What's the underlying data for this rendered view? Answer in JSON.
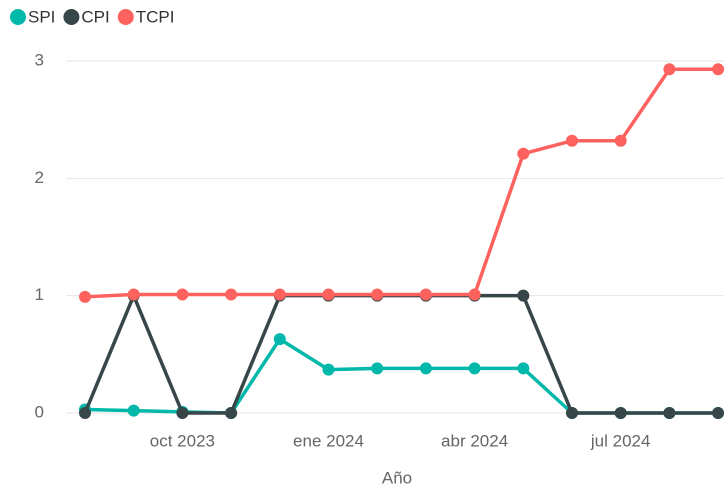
{
  "chart_data": {
    "type": "line",
    "x_label": "Año",
    "categories": [
      null,
      null,
      "oct 2023",
      null,
      null,
      "ene 2024",
      null,
      null,
      "abr 2024",
      null,
      null,
      "jul 2024",
      null,
      null
    ],
    "series": [
      {
        "name": "SPI",
        "color": "#01b8aa",
        "values": [
          0.03,
          0.02,
          0.01,
          0,
          0.63,
          0.37,
          0.38,
          0.38,
          0.38,
          0.38,
          0,
          0,
          0,
          0
        ]
      },
      {
        "name": "CPI",
        "color": "#374649",
        "values": [
          0,
          1,
          0,
          0,
          1,
          1,
          1,
          1,
          1,
          1,
          0,
          0,
          0,
          0
        ]
      },
      {
        "name": "TCPI",
        "color": "#fd625e",
        "values": [
          0.99,
          1.01,
          1.01,
          1.01,
          1.01,
          1.01,
          1.01,
          1.01,
          1.01,
          2.21,
          2.32,
          2.32,
          2.93,
          2.93
        ]
      }
    ],
    "ylim": [
      0,
      3
    ],
    "yticks": [
      0,
      1,
      2,
      3
    ],
    "grid": true,
    "legend": "top-left"
  }
}
